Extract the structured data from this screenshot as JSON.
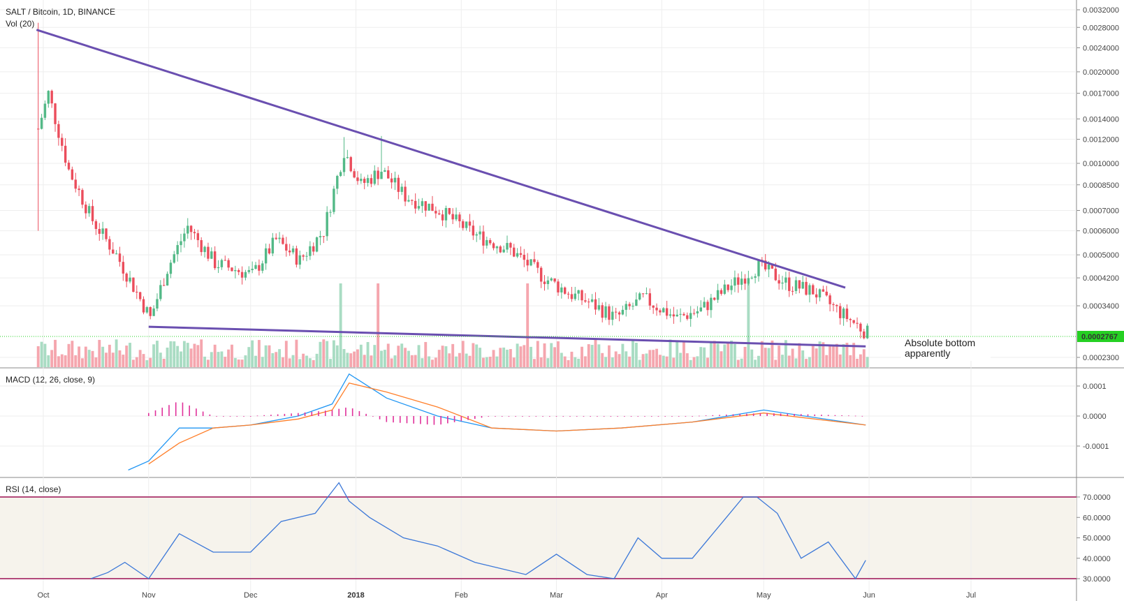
{
  "panels": {
    "main": {
      "title": "SALT / Bitcoin, 1D, BINANCE",
      "volume_label": "Vol (20)",
      "last_price": "0.0002767",
      "annotation_line1": "Absolute bottom",
      "annotation_line2": "apparently"
    },
    "macd": {
      "title": "MACD (12, 26, close, 9)"
    },
    "rsi": {
      "title": "RSI (14, close)"
    }
  },
  "colors": {
    "up": "#53b987",
    "down": "#eb4d5c",
    "vol_up": "#a9dcc3",
    "vol_down": "#f5a6ae",
    "trendline": "#6a4fb0",
    "macd": "#2196f3",
    "signal": "#ff7f2a",
    "hist": "#e0309a",
    "rsi": "#3c78d8",
    "rsi_band": "#b2487a",
    "rsi_bg": "#f6f3ec",
    "last_price_bg": "#25d023"
  },
  "chart_data": [
    {
      "type": "candlestick",
      "title": "SALT / Bitcoin, 1D, BINANCE",
      "scale": "log",
      "y_ticks": [
        "0.0032000",
        "0.0028000",
        "0.0024000",
        "0.0020000",
        "0.0017000",
        "0.0014000",
        "0.0012000",
        "0.0010000",
        "0.0008500",
        "0.0007000",
        "0.0006000",
        "0.0005000",
        "0.0004200",
        "0.0003400",
        "0.0002767",
        "0.0002300"
      ],
      "x_ticks": [
        "Oct",
        "Nov",
        "Dec",
        "2018",
        "Feb",
        "Mar",
        "Apr",
        "May",
        "Jun",
        "Jul"
      ],
      "key_prices": [
        {
          "date": "2017-09-29",
          "high": 0.0029,
          "low": 0.0006
        },
        {
          "date": "2017-11-01",
          "low": 0.00028
        },
        {
          "date": "2017-12-28",
          "high": 0.00122
        },
        {
          "date": "2018-01-08",
          "high": 0.00123
        },
        {
          "date": "2018-04-29",
          "high": 0.00048
        },
        {
          "date": "2018-05-31",
          "close": 0.0002767,
          "low": 0.00025
        }
      ],
      "trendlines": [
        {
          "name": "upper",
          "from": {
            "date": "2017-09-29",
            "price": 0.00275
          },
          "to": {
            "date": "2018-05-25",
            "price": 0.00039
          }
        },
        {
          "name": "lower",
          "from": {
            "date": "2017-11-01",
            "price": 0.00029
          },
          "to": {
            "date": "2018-05-31",
            "price": 0.00025
          }
        }
      ],
      "volume": {
        "label": "Vol (20)"
      }
    },
    {
      "type": "line",
      "title": "MACD (12, 26, close, 9)",
      "y_ticks": [
        "0.0001",
        "0.0000",
        "-0.0001"
      ],
      "series": [
        {
          "name": "MACD",
          "x": [
            "2017-10-26",
            "2017-11-01",
            "2017-11-10",
            "2017-11-20",
            "2017-12-01",
            "2017-12-15",
            "2017-12-25",
            "2017-12-30",
            "2018-01-10",
            "2018-01-25",
            "2018-02-10",
            "2018-03-01",
            "2018-03-20",
            "2018-04-10",
            "2018-05-01",
            "2018-05-31"
          ],
          "y": [
            -0.00018,
            -0.00015,
            -4e-05,
            -4e-05,
            -3e-05,
            0.0,
            4e-05,
            0.00014,
            6e-05,
            0.0,
            -4e-05,
            -5e-05,
            -4e-05,
            -2e-05,
            2e-05,
            -3e-05
          ]
        },
        {
          "name": "Signal",
          "x": [
            "2017-11-01",
            "2017-11-10",
            "2017-11-20",
            "2017-12-01",
            "2017-12-15",
            "2017-12-25",
            "2017-12-30",
            "2018-01-10",
            "2018-01-25",
            "2018-02-10",
            "2018-03-01",
            "2018-03-20",
            "2018-04-10",
            "2018-05-01",
            "2018-05-31"
          ],
          "y": [
            -0.00016,
            -9e-05,
            -4e-05,
            -3e-05,
            -1e-05,
            2e-05,
            0.00011,
            8e-05,
            3e-05,
            -4e-05,
            -5e-05,
            -4e-05,
            -2e-05,
            1e-05,
            -3e-05
          ]
        }
      ]
    },
    {
      "type": "line",
      "title": "RSI (14, close)",
      "y_ticks": [
        "70.0000",
        "60.0000",
        "50.0000",
        "40.0000",
        "30.0000"
      ],
      "bands": [
        30,
        70
      ],
      "series": [
        {
          "name": "RSI",
          "x": [
            "2017-10-15",
            "2017-10-20",
            "2017-10-25",
            "2017-11-01",
            "2017-11-10",
            "2017-11-20",
            "2017-12-01",
            "2017-12-10",
            "2017-12-20",
            "2017-12-27",
            "2017-12-30",
            "2018-01-05",
            "2018-01-15",
            "2018-01-25",
            "2018-02-05",
            "2018-02-20",
            "2018-03-01",
            "2018-03-10",
            "2018-03-18",
            "2018-03-25",
            "2018-04-01",
            "2018-04-10",
            "2018-04-20",
            "2018-04-25",
            "2018-04-29",
            "2018-05-05",
            "2018-05-12",
            "2018-05-20",
            "2018-05-28",
            "2018-05-31"
          ],
          "y": [
            30,
            33,
            38,
            30,
            52,
            43,
            43,
            58,
            62,
            77,
            68,
            60,
            50,
            46,
            38,
            32,
            42,
            32,
            30,
            50,
            40,
            40,
            60,
            70,
            70,
            62,
            40,
            48,
            30,
            39
          ]
        }
      ]
    }
  ]
}
